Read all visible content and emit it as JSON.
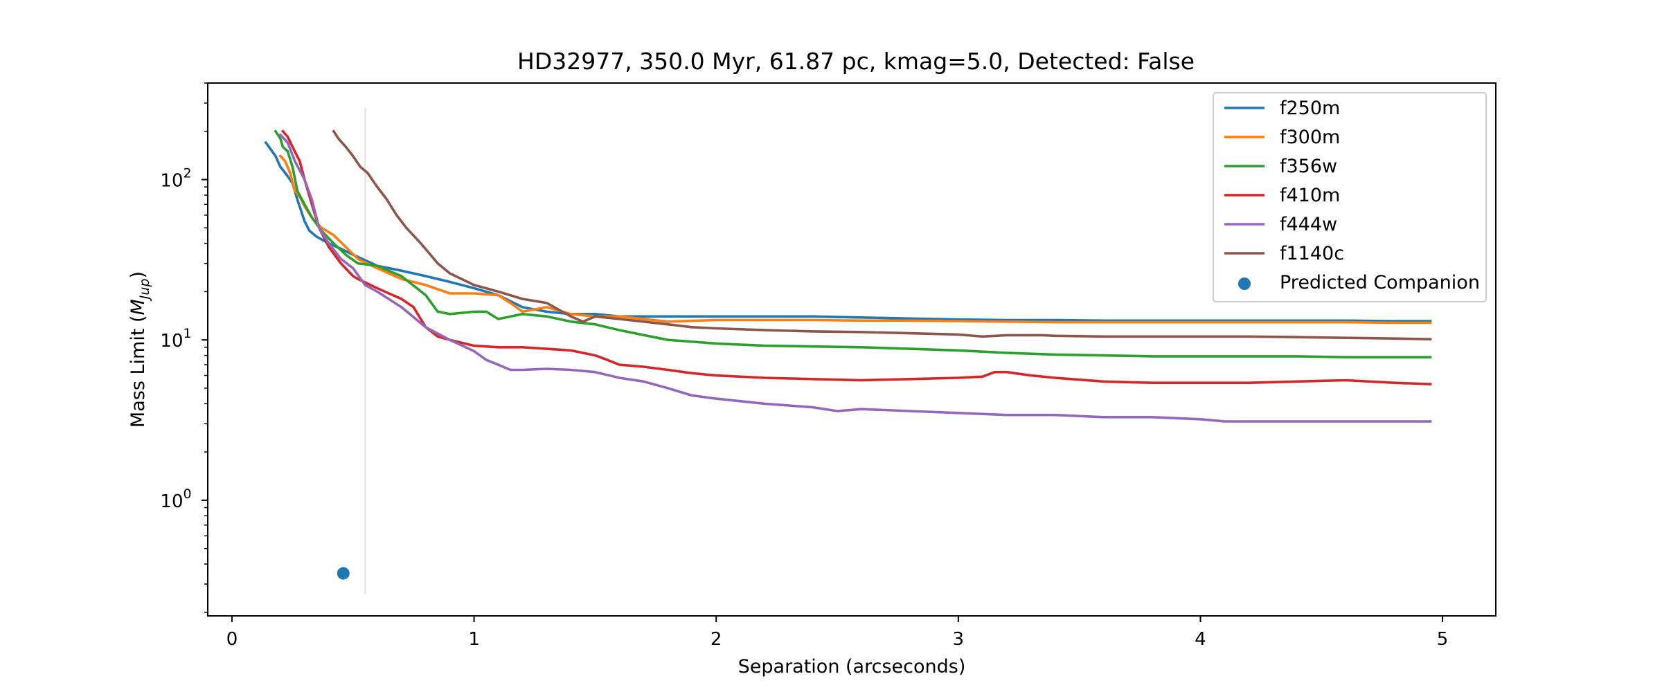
{
  "chart_data": {
    "type": "line",
    "title": "HD32977, 350.0 Myr, 61.87 pc, kmag=5.0, Detected: False",
    "xlabel": "Separation (arcseconds)",
    "ylabel_main": "Mass Limit (",
    "ylabel_math": "M",
    "ylabel_sub": "Jup",
    "ylabel_end": ")",
    "xlim": [
      -0.1,
      5.22
    ],
    "ylim_log": [
      0.19,
      400
    ],
    "y_scale": "log",
    "grid": false,
    "legend_position": "top-right",
    "x_ticks": [
      0,
      1,
      2,
      3,
      4,
      5
    ],
    "x_tick_labels": [
      "0",
      "1",
      "2",
      "3",
      "4",
      "5"
    ],
    "y_major_ticks": [
      {
        "value": 1,
        "base": "10",
        "exp": "0"
      },
      {
        "value": 10,
        "base": "10",
        "exp": "1"
      },
      {
        "value": 100,
        "base": "10",
        "exp": "2"
      }
    ],
    "reference_line": {
      "x": 0.55,
      "y_range": [
        0.26,
        280
      ],
      "color": "#e0e0e0"
    },
    "series": [
      {
        "name": "f250m",
        "color": "#1f77b4",
        "x": [
          0.14,
          0.18,
          0.2,
          0.22,
          0.25,
          0.27,
          0.3,
          0.32,
          0.35,
          0.4,
          0.45,
          0.5,
          0.6,
          0.7,
          0.8,
          0.9,
          1.0,
          1.1,
          1.2,
          1.3,
          1.4,
          1.5,
          1.6,
          1.7,
          1.8,
          1.9,
          2.0,
          2.2,
          2.4,
          2.6,
          2.8,
          3.0,
          3.2,
          3.4,
          3.6,
          3.8,
          4.0,
          4.2,
          4.4,
          4.6,
          4.8,
          4.95
        ],
        "y": [
          170,
          140,
          120,
          110,
          95,
          75,
          55,
          48,
          44,
          40,
          37,
          34,
          29,
          27,
          25,
          23,
          21,
          19,
          16,
          15,
          14.5,
          14.5,
          14,
          14,
          14,
          14,
          14,
          14,
          14,
          13.8,
          13.6,
          13.4,
          13.3,
          13.3,
          13.2,
          13.2,
          13.2,
          13.2,
          13.2,
          13.2,
          13.1,
          13.1
        ]
      },
      {
        "name": "f300m",
        "color": "#ff7f0e",
        "x": [
          0.2,
          0.22,
          0.24,
          0.26,
          0.28,
          0.3,
          0.33,
          0.37,
          0.42,
          0.47,
          0.52,
          0.6,
          0.7,
          0.8,
          0.9,
          1.0,
          1.1,
          1.15,
          1.2,
          1.3,
          1.4,
          1.5,
          1.6,
          1.7,
          1.8,
          2.0,
          2.2,
          2.4,
          2.6,
          2.8,
          3.0,
          3.2,
          3.4,
          3.6,
          3.8,
          4.0,
          4.2,
          4.4,
          4.6,
          4.8,
          4.95
        ],
        "y": [
          140,
          130,
          110,
          85,
          78,
          68,
          58,
          50,
          45,
          38,
          32,
          28,
          24,
          22,
          19.5,
          19.5,
          19,
          17,
          15,
          16,
          14.5,
          14,
          14,
          13.5,
          13,
          13.3,
          13.3,
          13.3,
          13.2,
          13.2,
          13.1,
          13.0,
          12.9,
          12.9,
          12.9,
          12.9,
          12.9,
          12.9,
          12.9,
          12.8,
          12.8
        ]
      },
      {
        "name": "f356w",
        "color": "#2ca02c",
        "x": [
          0.18,
          0.2,
          0.21,
          0.22,
          0.23,
          0.25,
          0.27,
          0.3,
          0.33,
          0.37,
          0.42,
          0.47,
          0.52,
          0.6,
          0.7,
          0.8,
          0.85,
          0.9,
          1.0,
          1.05,
          1.1,
          1.2,
          1.3,
          1.4,
          1.5,
          1.6,
          1.8,
          2.0,
          2.2,
          2.4,
          2.6,
          2.8,
          3.0,
          3.2,
          3.4,
          3.6,
          3.8,
          4.0,
          4.2,
          4.4,
          4.6,
          4.8,
          4.95
        ],
        "y": [
          200,
          180,
          160,
          155,
          150,
          120,
          85,
          70,
          58,
          48,
          40,
          34,
          30,
          29,
          25,
          19,
          15,
          14.5,
          15,
          15,
          13.5,
          14.5,
          14,
          13,
          12.5,
          11.5,
          10,
          9.5,
          9.2,
          9.1,
          9.0,
          8.8,
          8.6,
          8.3,
          8.1,
          8.0,
          7.9,
          7.9,
          7.9,
          7.9,
          7.8,
          7.8,
          7.8
        ]
      },
      {
        "name": "f410m",
        "color": "#d62728",
        "x": [
          0.21,
          0.23,
          0.25,
          0.28,
          0.3,
          0.33,
          0.36,
          0.4,
          0.45,
          0.5,
          0.52,
          0.6,
          0.7,
          0.75,
          0.8,
          0.85,
          0.9,
          1.0,
          1.1,
          1.2,
          1.3,
          1.4,
          1.5,
          1.55,
          1.6,
          1.7,
          1.8,
          1.9,
          2.0,
          2.2,
          2.4,
          2.6,
          2.8,
          3.0,
          3.1,
          3.15,
          3.2,
          3.3,
          3.4,
          3.6,
          3.8,
          4.0,
          4.2,
          4.4,
          4.6,
          4.8,
          4.95
        ],
        "y": [
          200,
          185,
          160,
          130,
          100,
          70,
          50,
          38,
          30,
          25,
          24,
          21,
          18,
          16,
          12,
          10.5,
          10,
          9.2,
          9,
          9,
          8.8,
          8.6,
          8,
          7.5,
          7,
          6.8,
          6.5,
          6.2,
          6.0,
          5.8,
          5.7,
          5.6,
          5.7,
          5.8,
          5.9,
          6.3,
          6.3,
          6.0,
          5.8,
          5.5,
          5.4,
          5.4,
          5.4,
          5.5,
          5.6,
          5.4,
          5.3
        ]
      },
      {
        "name": "f444w",
        "color": "#9467bd",
        "x": [
          0.2,
          0.23,
          0.26,
          0.3,
          0.33,
          0.36,
          0.4,
          0.45,
          0.5,
          0.55,
          0.6,
          0.7,
          0.8,
          0.9,
          1.0,
          1.05,
          1.1,
          1.15,
          1.2,
          1.3,
          1.4,
          1.5,
          1.6,
          1.7,
          1.8,
          1.9,
          2.0,
          2.2,
          2.4,
          2.5,
          2.6,
          2.8,
          3.0,
          3.2,
          3.4,
          3.6,
          3.8,
          4.0,
          4.1,
          4.2,
          4.4,
          4.6,
          4.8,
          4.95
        ],
        "y": [
          190,
          170,
          130,
          100,
          75,
          50,
          40,
          32,
          28,
          22,
          20,
          16,
          12,
          10,
          8.5,
          7.5,
          7,
          6.5,
          6.5,
          6.6,
          6.5,
          6.3,
          5.8,
          5.5,
          5.0,
          4.5,
          4.3,
          4.0,
          3.8,
          3.6,
          3.7,
          3.6,
          3.5,
          3.4,
          3.4,
          3.3,
          3.3,
          3.2,
          3.1,
          3.1,
          3.1,
          3.1,
          3.1,
          3.1
        ]
      },
      {
        "name": "f1140c",
        "color": "#8c564b",
        "x": [
          0.42,
          0.44,
          0.47,
          0.5,
          0.53,
          0.56,
          0.6,
          0.64,
          0.68,
          0.72,
          0.78,
          0.85,
          0.9,
          1.0,
          1.1,
          1.2,
          1.3,
          1.4,
          1.45,
          1.5,
          1.6,
          1.7,
          1.8,
          1.9,
          2.0,
          2.2,
          2.4,
          2.6,
          2.8,
          3.0,
          3.1,
          3.2,
          3.35,
          3.4,
          3.6,
          3.8,
          4.0,
          4.2,
          4.4,
          4.6,
          4.8,
          4.95
        ],
        "y": [
          200,
          180,
          160,
          140,
          120,
          110,
          90,
          75,
          60,
          50,
          40,
          30,
          26,
          22,
          20,
          18,
          17,
          14,
          13,
          14,
          13.5,
          13,
          12.5,
          12,
          11.8,
          11.5,
          11.3,
          11.2,
          11.0,
          10.8,
          10.5,
          10.7,
          10.7,
          10.6,
          10.5,
          10.5,
          10.5,
          10.5,
          10.4,
          10.3,
          10.2,
          10.1
        ]
      }
    ],
    "scatter": [
      {
        "name": "Predicted Companion",
        "color": "#1f77b4",
        "x": 0.46,
        "y": 0.35
      }
    ]
  }
}
